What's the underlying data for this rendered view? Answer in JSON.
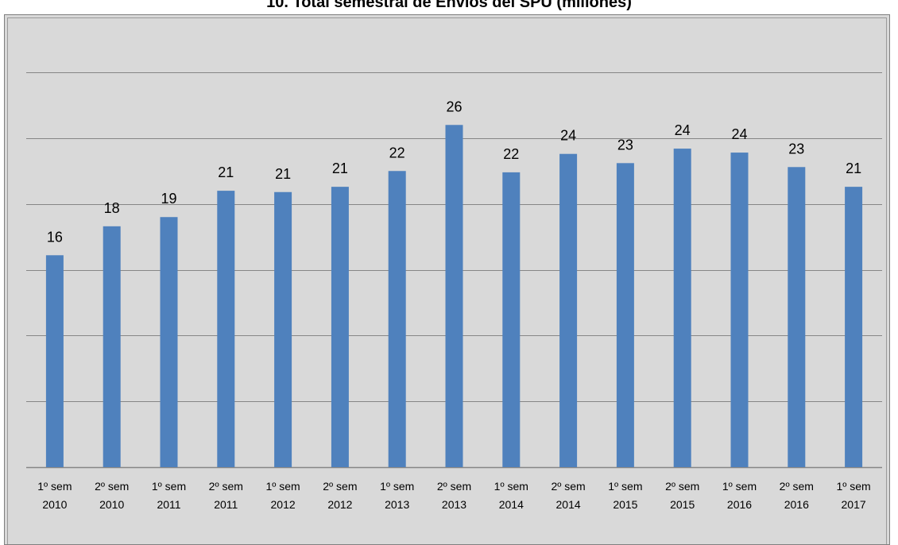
{
  "chart_data": {
    "type": "bar",
    "title": "10. Total semestral de Envíos del SPU (millones)",
    "categories": [
      [
        "1º sem",
        "2010"
      ],
      [
        "2º sem",
        "2010"
      ],
      [
        "1º sem",
        "2011"
      ],
      [
        "2º sem",
        "2011"
      ],
      [
        "1º sem",
        "2012"
      ],
      [
        "2º sem",
        "2012"
      ],
      [
        "1º sem",
        "2013"
      ],
      [
        "2º sem",
        "2013"
      ],
      [
        "1º sem",
        "2014"
      ],
      [
        "2º sem",
        "2014"
      ],
      [
        "1º sem",
        "2015"
      ],
      [
        "2º sem",
        "2015"
      ],
      [
        "1º sem",
        "2016"
      ],
      [
        "2º sem",
        "2016"
      ],
      [
        "1º sem",
        "2017"
      ]
    ],
    "values": [
      16.1,
      18.3,
      19.0,
      21.0,
      20.9,
      21.3,
      22.5,
      26.0,
      22.4,
      23.8,
      23.1,
      24.2,
      23.9,
      22.8,
      21.3
    ],
    "data_labels": [
      "16",
      "18",
      "19",
      "21",
      "21",
      "21",
      "22",
      "26",
      "22",
      "24",
      "23",
      "24",
      "24",
      "23",
      "21"
    ],
    "ylim": [
      0,
      30
    ],
    "ytick_step": 5,
    "show_y_tick_labels": false,
    "grid": true,
    "bar_color": "#4f81bd",
    "background_color": "#d9d9d9",
    "gridline_color": "#868686"
  }
}
